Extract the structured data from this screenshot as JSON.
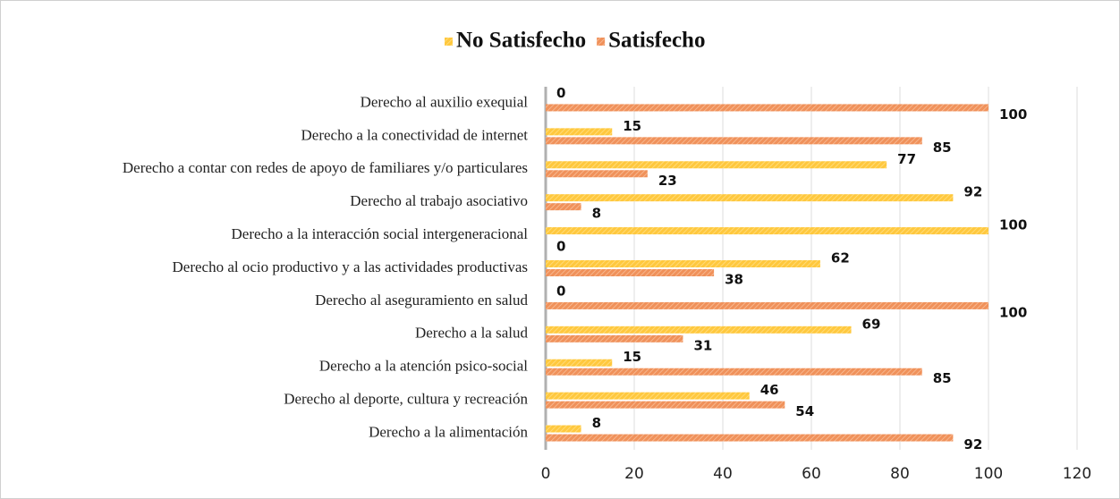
{
  "chart_data": {
    "type": "bar",
    "orientation": "horizontal",
    "categories": [
      "Derecho al auxilio exequial",
      "Derecho a la conectividad de internet",
      "Derecho a contar con redes de apoyo de familiares y/o particulares",
      "Derecho al trabajo asociativo",
      "Derecho a la interacción social intergeneracional",
      "Derecho al ocio productivo y a las actividades productivas",
      "Derecho al aseguramiento en salud",
      "Derecho a la salud",
      "Derecho a la atención psico-social",
      "Derecho al deporte, cultura y recreación",
      "Derecho a la alimentación"
    ],
    "series": [
      {
        "name": "No Satisfecho",
        "color": "#ffc83d",
        "values": [
          0,
          15,
          77,
          92,
          100,
          62,
          0,
          69,
          15,
          46,
          8
        ]
      },
      {
        "name": "Satisfecho",
        "color": "#f0915a",
        "values": [
          100,
          85,
          23,
          8,
          0,
          38,
          100,
          31,
          85,
          54,
          92
        ]
      }
    ],
    "xlim": [
      0,
      120
    ],
    "xticks": [
      0,
      20,
      40,
      60,
      80,
      100,
      120
    ],
    "grid": true,
    "legend": "top"
  }
}
